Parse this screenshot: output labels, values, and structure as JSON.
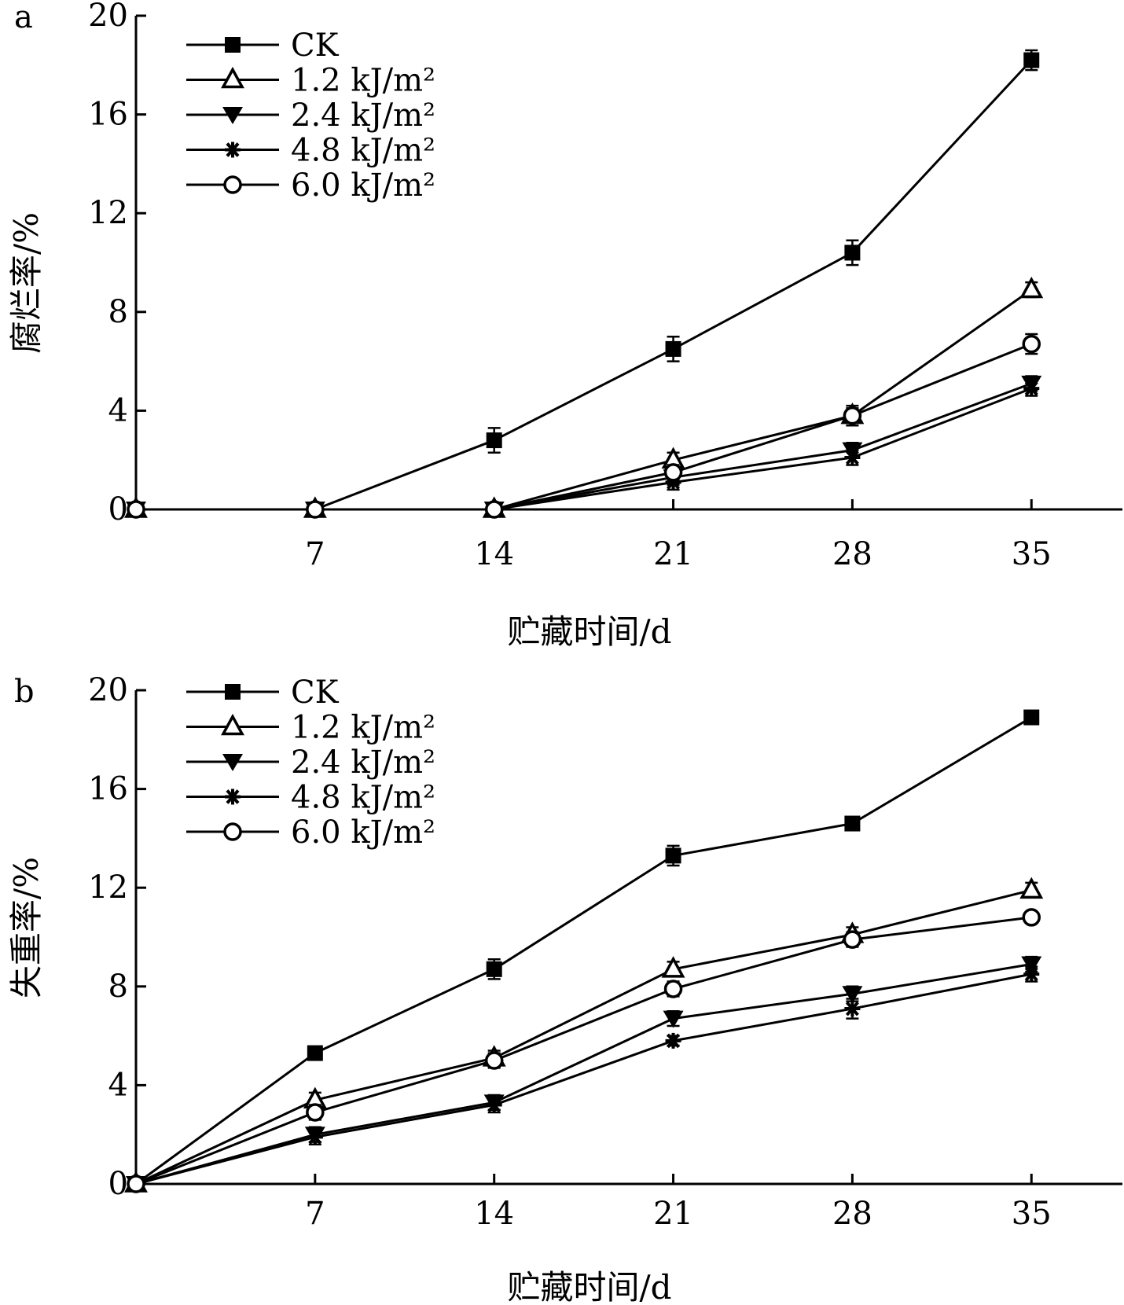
{
  "chart_data": [
    {
      "type": "line",
      "panel_label": "a",
      "xlabel": "贮藏时间/d",
      "ylabel": "腐烂率/%",
      "x": [
        0,
        7,
        14,
        21,
        28,
        35
      ],
      "x_tick_labels": [
        "7",
        "14",
        "21",
        "28",
        "35"
      ],
      "y_tick_labels": [
        "0",
        "4",
        "8",
        "12",
        "16",
        "20"
      ],
      "xlim": [
        0,
        38
      ],
      "ylim": [
        0,
        20
      ],
      "grid": false,
      "legend_position": "top-left",
      "series": [
        {
          "name": "CK",
          "marker": "filled-square",
          "values": [
            0,
            0,
            2.8,
            6.5,
            10.4,
            18.2
          ],
          "errors": [
            0,
            0,
            0.5,
            0.5,
            0.5,
            0.4
          ]
        },
        {
          "name": "1.2 kJ/m²",
          "marker": "open-triangle-up",
          "values": [
            0,
            0,
            0,
            2.0,
            3.8,
            8.9
          ],
          "errors": [
            0,
            0,
            0,
            0.3,
            0.3,
            0.3
          ]
        },
        {
          "name": "2.4 kJ/m²",
          "marker": "filled-triangle-down",
          "values": [
            0,
            0,
            0,
            1.3,
            2.4,
            5.1
          ],
          "errors": [
            0,
            0,
            0,
            0.3,
            0.3,
            0.3
          ]
        },
        {
          "name": "4.8 kJ/m²",
          "marker": "asterisk",
          "values": [
            0,
            0,
            0,
            1.1,
            2.1,
            4.9
          ],
          "errors": [
            0,
            0,
            0,
            0.3,
            0.3,
            0.3
          ]
        },
        {
          "name": "6.0 kJ/m²",
          "marker": "open-circle",
          "values": [
            0,
            0,
            0,
            1.5,
            3.8,
            6.7
          ],
          "errors": [
            0,
            0,
            0,
            0.3,
            0.4,
            0.4
          ]
        }
      ]
    },
    {
      "type": "line",
      "panel_label": "b",
      "xlabel": "贮藏时间/d",
      "ylabel": "失重率/%",
      "x": [
        0,
        7,
        14,
        21,
        28,
        35
      ],
      "x_tick_labels": [
        "7",
        "14",
        "21",
        "28",
        "35"
      ],
      "y_tick_labels": [
        "0",
        "4",
        "8",
        "12",
        "16",
        "20"
      ],
      "xlim": [
        0,
        38
      ],
      "ylim": [
        0,
        20
      ],
      "grid": false,
      "legend_position": "top-left",
      "series": [
        {
          "name": "CK",
          "marker": "filled-square",
          "values": [
            0,
            5.3,
            8.7,
            13.3,
            14.6,
            18.9
          ],
          "errors": [
            0,
            0.2,
            0.4,
            0.4,
            0.2,
            0.2
          ]
        },
        {
          "name": "1.2 kJ/m²",
          "marker": "open-triangle-up",
          "values": [
            0,
            3.4,
            5.1,
            8.7,
            10.1,
            11.9
          ],
          "errors": [
            0,
            0.3,
            0.3,
            0.3,
            0.3,
            0.3
          ]
        },
        {
          "name": "2.4 kJ/m²",
          "marker": "filled-triangle-down",
          "values": [
            0,
            2.0,
            3.3,
            6.7,
            7.7,
            8.9
          ],
          "errors": [
            0,
            0.3,
            0.3,
            0.3,
            0.3,
            0.3
          ]
        },
        {
          "name": "4.8 kJ/m²",
          "marker": "asterisk",
          "values": [
            0,
            1.9,
            3.2,
            5.8,
            7.1,
            8.5
          ],
          "errors": [
            0,
            0.3,
            0.3,
            0.2,
            0.4,
            0.3
          ]
        },
        {
          "name": "6.0 kJ/m²",
          "marker": "open-circle",
          "values": [
            0,
            2.9,
            5.0,
            7.9,
            9.9,
            10.8
          ],
          "errors": [
            0,
            0.3,
            0.3,
            0.3,
            0.3,
            0.2
          ]
        }
      ]
    }
  ]
}
